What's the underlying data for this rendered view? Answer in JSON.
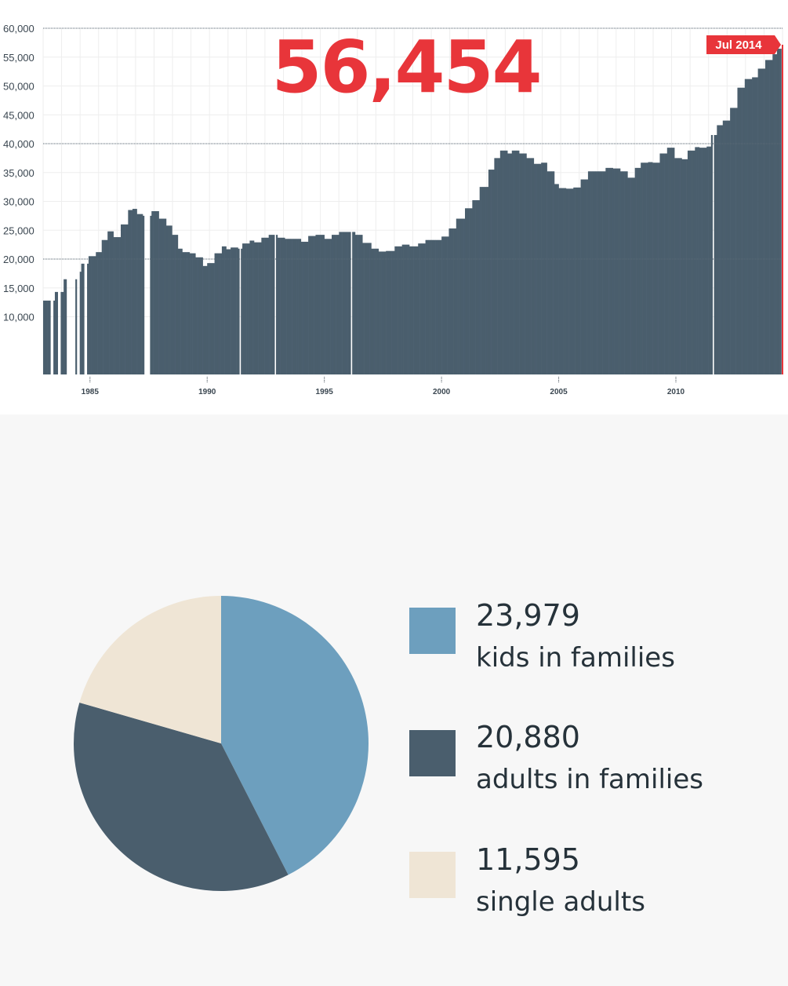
{
  "chart_data": [
    {
      "type": "area",
      "title": "56,454",
      "latest_label": "Jul 2014",
      "ylim": [
        0,
        60000
      ],
      "y_ticks": [
        10000,
        15000,
        20000,
        25000,
        30000,
        35000,
        40000,
        45000,
        50000,
        55000,
        60000
      ],
      "y_tick_labels": [
        "10,000",
        "15,000",
        "20,000",
        "25,000",
        "30,000",
        "35,000",
        "40,000",
        "45,000",
        "50,000",
        "55,000",
        "60,000"
      ],
      "xlim": [
        1983.0,
        2014.55
      ],
      "x_ticks": [
        1985,
        1990,
        1995,
        2000,
        2005,
        2010
      ],
      "x_tick_labels": [
        "1985",
        "1990",
        "1995",
        "2000",
        "2005",
        "2010"
      ],
      "reference_lines": [
        20000,
        40000,
        60000
      ],
      "gaps": [
        [
          1983.3,
          1983.45
        ],
        [
          1983.65,
          1983.75
        ],
        [
          1984.0,
          1984.35
        ],
        [
          1984.45,
          1984.55
        ],
        [
          1984.75,
          1984.85
        ],
        [
          1987.3,
          1987.55
        ],
        [
          1991.35,
          1991.45
        ],
        [
          1992.85,
          1992.95
        ],
        [
          1996.1,
          1996.2
        ],
        [
          2011.55,
          2011.65
        ],
        [
          2014.5,
          2014.6
        ]
      ],
      "x": [
        1983.0,
        1983.5,
        1983.85,
        1984.4,
        1984.6,
        1984.9,
        1985.2,
        1985.5,
        1985.7,
        1986.0,
        1986.3,
        1986.6,
        1986.8,
        1987.0,
        1987.2,
        1987.6,
        1987.9,
        1988.2,
        1988.5,
        1988.7,
        1988.9,
        1989.2,
        1989.5,
        1989.8,
        1990.0,
        1990.3,
        1990.6,
        1990.8,
        1991.0,
        1991.3,
        1991.5,
        1991.8,
        1992.0,
        1992.3,
        1992.6,
        1993.0,
        1993.3,
        1993.6,
        1994.0,
        1994.3,
        1994.6,
        1995.0,
        1995.3,
        1995.6,
        1996.0,
        1996.3,
        1996.6,
        1997.0,
        1997.3,
        1997.6,
        1998.0,
        1998.3,
        1998.6,
        1999.0,
        1999.3,
        1999.6,
        2000.0,
        2000.3,
        2000.6,
        2001.0,
        2001.3,
        2001.6,
        2002.0,
        2002.2,
        2002.5,
        2002.8,
        2003.0,
        2003.3,
        2003.6,
        2003.9,
        2004.2,
        2004.5,
        2004.8,
        2005.0,
        2005.3,
        2005.6,
        2005.9,
        2006.2,
        2006.5,
        2006.8,
        2007.0,
        2007.3,
        2007.6,
        2007.9,
        2008.2,
        2008.5,
        2008.8,
        2009.0,
        2009.3,
        2009.6,
        2009.9,
        2010.2,
        2010.5,
        2010.8,
        2011.0,
        2011.3,
        2011.5,
        2011.7,
        2012.0,
        2012.3,
        2012.6,
        2012.9,
        2013.2,
        2013.5,
        2013.8,
        2014.1,
        2014.3,
        2014.5
      ],
      "values": [
        12800,
        14300,
        16500,
        17800,
        19200,
        20500,
        21200,
        23300,
        24800,
        23800,
        26000,
        28500,
        28700,
        27800,
        27500,
        28300,
        27000,
        25800,
        24200,
        21800,
        21200,
        21000,
        20300,
        18800,
        19300,
        21000,
        22200,
        21700,
        22000,
        21800,
        22700,
        23200,
        22900,
        23700,
        24200,
        23700,
        23500,
        23500,
        23000,
        24000,
        24200,
        23500,
        24200,
        24700,
        24700,
        24200,
        22800,
        21800,
        21300,
        21400,
        22200,
        22500,
        22200,
        22700,
        23300,
        23300,
        23900,
        25300,
        27000,
        28800,
        30200,
        32500,
        35500,
        37500,
        38800,
        38300,
        38800,
        38300,
        37500,
        36500,
        36700,
        35200,
        33000,
        32300,
        32200,
        32400,
        33800,
        35200,
        35200,
        35200,
        35800,
        35700,
        35200,
        34100,
        35800,
        36700,
        36800,
        36700,
        38300,
        39300,
        37500,
        37300,
        38800,
        39400,
        39300,
        39500,
        41500,
        43200,
        44000,
        46200,
        49700,
        51200,
        51500,
        53000,
        54500,
        55500,
        56454,
        56454
      ],
      "ylabel": "",
      "xlabel": ""
    },
    {
      "type": "pie",
      "categories": [
        "kids in families",
        "adults in families",
        "single adults"
      ],
      "values": [
        23979,
        20880,
        11595
      ],
      "value_labels": [
        "23,979",
        "20,880",
        "11,595"
      ],
      "colors": [
        "#6d9fbe",
        "#4a5e6d",
        "#efe5d5"
      ]
    }
  ],
  "colors": {
    "area_fill": "#4a5e6d",
    "accent": "#e8353a",
    "grid": "#eeeeee"
  }
}
